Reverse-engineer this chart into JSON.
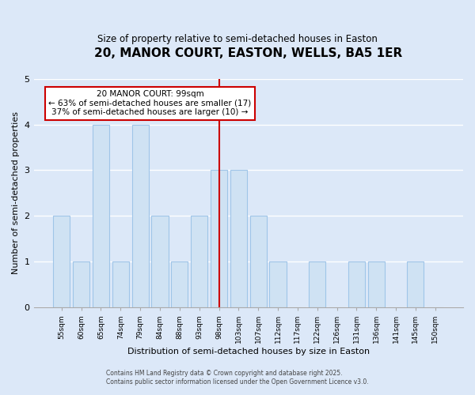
{
  "title": "20, MANOR COURT, EASTON, WELLS, BA5 1ER",
  "subtitle": "Size of property relative to semi-detached houses in Easton",
  "xlabel": "Distribution of semi-detached houses by size in Easton",
  "ylabel": "Number of semi-detached properties",
  "categories": [
    "55sqm",
    "60sqm",
    "65sqm",
    "74sqm",
    "79sqm",
    "84sqm",
    "88sqm",
    "93sqm",
    "98sqm",
    "103sqm",
    "107sqm",
    "112sqm",
    "117sqm",
    "122sqm",
    "126sqm",
    "131sqm",
    "136sqm",
    "141sqm",
    "145sqm",
    "150sqm"
  ],
  "values": [
    2,
    1,
    4,
    1,
    4,
    2,
    1,
    2,
    3,
    3,
    2,
    1,
    0,
    1,
    0,
    1,
    1,
    0,
    1,
    0
  ],
  "bar_color": "#cfe2f3",
  "bar_edge_color": "#9fc5e8",
  "highlight_index": 8,
  "red_line_color": "#cc0000",
  "background_color": "#dce8f8",
  "fig_background_color": "#dce8f8",
  "grid_color": "#ffffff",
  "annotation_line1": "20 MANOR COURT: 99sqm",
  "annotation_line2": "← 63% of semi-detached houses are smaller (17)",
  "annotation_line3": "37% of semi-detached houses are larger (10) →",
  "annotation_box_color": "#ffffff",
  "annotation_border_color": "#cc0000",
  "ylim": [
    0,
    5
  ],
  "yticks": [
    0,
    1,
    2,
    3,
    4,
    5
  ],
  "footer1": "Contains HM Land Registry data © Crown copyright and database right 2025.",
  "footer2": "Contains public sector information licensed under the Open Government Licence v3.0."
}
